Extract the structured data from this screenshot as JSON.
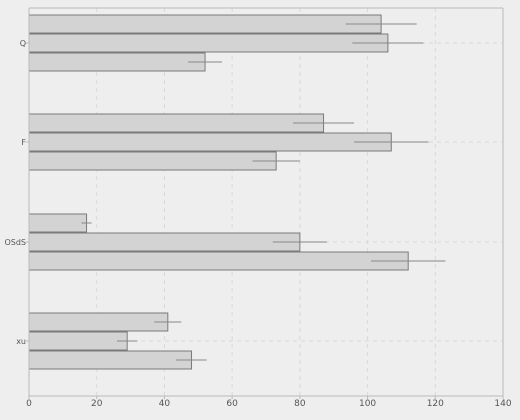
{
  "chart_data": {
    "type": "bar",
    "orientation": "horizontal",
    "categories": [
      "Q",
      "F",
      "OSdS",
      "xu"
    ],
    "series": [
      {
        "values": [
          104,
          87,
          17,
          41
        ],
        "errors": [
          10.5,
          9,
          1.5,
          4
        ]
      },
      {
        "values": [
          106,
          107,
          80,
          29
        ],
        "errors": [
          10.5,
          11,
          8,
          3
        ]
      },
      {
        "values": [
          52,
          73,
          112,
          48
        ],
        "errors": [
          5,
          7,
          11,
          4.5
        ]
      }
    ],
    "title": "",
    "xlabel": "",
    "ylabel": "",
    "xlim": [
      0,
      140
    ],
    "xticks": [
      0,
      20,
      40,
      60,
      80,
      100,
      120,
      140
    ],
    "grid": true,
    "legend": false,
    "colors": {
      "background": "#eeeeee",
      "bar_fill": "#d3d3d3",
      "bar_edge": "#7a7a7a",
      "error_bar": "#888888",
      "grid": "#d9d9d9",
      "axis": "#bbbbbb",
      "text": "#555555"
    }
  }
}
